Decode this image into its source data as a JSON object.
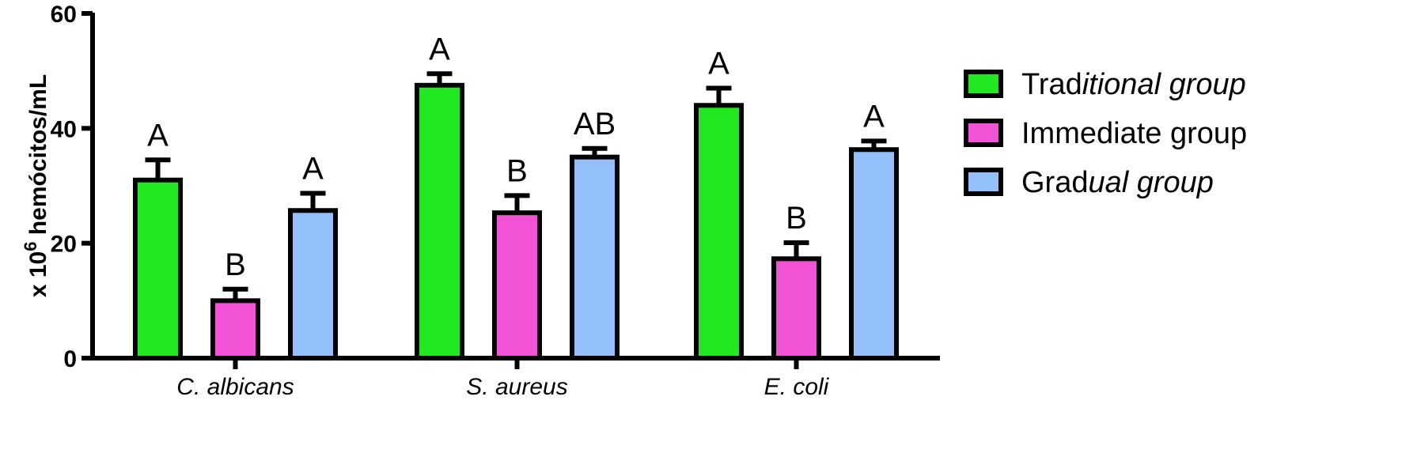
{
  "chart_data": {
    "type": "bar",
    "categories": [
      "C. albicans",
      "S. aureus",
      "E. coli"
    ],
    "ylabel_prefix": "x 10",
    "ylabel_superscript": "6",
    "ylabel_suffix": " hemócitos/mL",
    "ylim": [
      0,
      60
    ],
    "yticks": [
      0,
      20,
      40,
      60
    ],
    "series": [
      {
        "name_prefix": "Trad",
        "name_italic": "itional group",
        "name": "Traditional group",
        "color": "#22e822",
        "values": [
          31,
          47.5,
          44
        ],
        "errors": [
          3.5,
          2,
          3
        ],
        "significance": [
          "A",
          "A",
          "A"
        ]
      },
      {
        "name_prefix": "Immediate group",
        "name_italic": "",
        "name": "Immediate group",
        "color": "#f252d6",
        "values": [
          10,
          25.3,
          17.3
        ],
        "errors": [
          2,
          3,
          2.8
        ],
        "significance": [
          "B",
          "B",
          "B"
        ]
      },
      {
        "name_prefix": "Grad",
        "name_italic": "ual group",
        "name": "Gradual group",
        "color": "#93c0fa",
        "values": [
          25.7,
          35,
          36.3
        ],
        "errors": [
          3,
          1.5,
          1.5
        ],
        "significance": [
          "A",
          "AB",
          "A"
        ]
      }
    ],
    "legend_position": "right",
    "grid": false
  }
}
